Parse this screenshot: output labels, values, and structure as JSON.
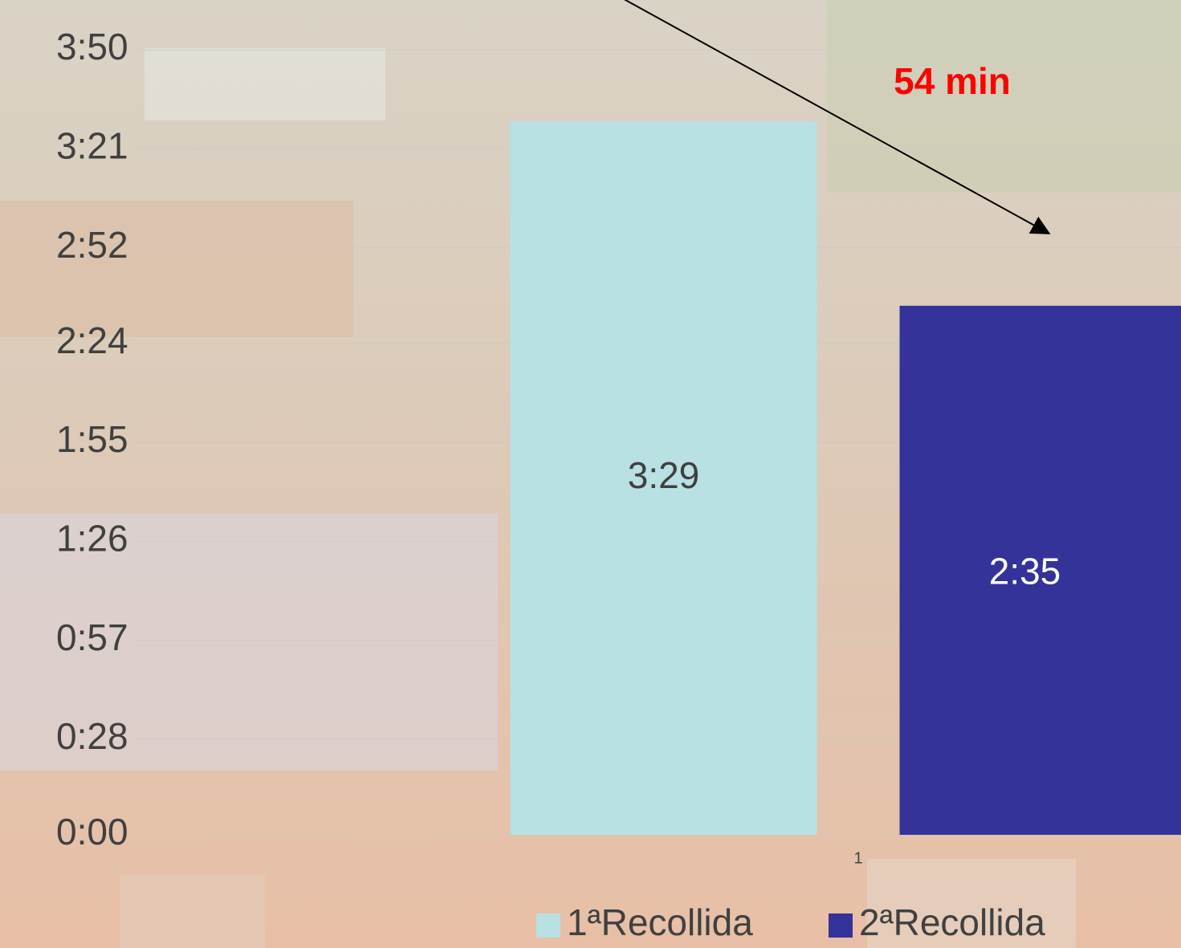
{
  "chart_data": {
    "type": "bar",
    "categories": [
      "1"
    ],
    "series": [
      {
        "name": "1ªRecollida",
        "color": "#b9e0e2",
        "values": [
          209
        ],
        "value_labels": [
          "3:29"
        ],
        "label_color": "#404040"
      },
      {
        "name": "2ªRecollida",
        "color": "#333399",
        "values": [
          155
        ],
        "value_labels": [
          "2:35"
        ],
        "label_color": "#ffffff"
      }
    ],
    "ylim": [
      0,
      230
    ],
    "yticks": [
      {
        "value": 0,
        "label": "0:00"
      },
      {
        "value": 28,
        "label": "0:28"
      },
      {
        "value": 57,
        "label": "0:57"
      },
      {
        "value": 86,
        "label": "1:26"
      },
      {
        "value": 115,
        "label": "1:55"
      },
      {
        "value": 144,
        "label": "2:24"
      },
      {
        "value": 172,
        "label": "2:52"
      },
      {
        "value": 201,
        "label": "3:21"
      },
      {
        "value": 230,
        "label": "3:50"
      }
    ],
    "grid": true,
    "legend": "bottom",
    "annotation": "54 min"
  }
}
